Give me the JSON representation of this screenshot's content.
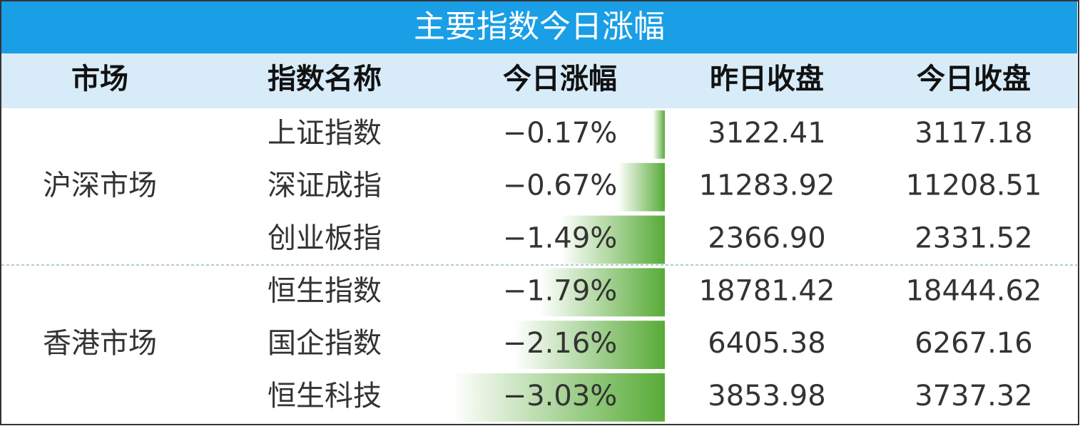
{
  "title": "主要指数今日涨幅",
  "table": {
    "header": [
      "市场",
      "指数名称",
      "今日涨幅",
      "昨日收盘",
      "今日收盘"
    ],
    "groups": [
      {
        "market": "沪深市场",
        "rows": [
          {
            "name": "上证指数",
            "change": {
              "value": -0.17,
              "label": "−0.17%"
            },
            "prev_close": "3122.41",
            "close": "3117.18"
          },
          {
            "name": "深证成指",
            "change": {
              "value": -0.67,
              "label": "−0.67%"
            },
            "prev_close": "11283.92",
            "close": "11208.51"
          },
          {
            "name": "创业板指",
            "change": {
              "value": -1.49,
              "label": "−1.49%"
            },
            "prev_close": "2366.90",
            "close": "2331.52"
          }
        ]
      },
      {
        "market": "香港市场",
        "rows": [
          {
            "name": "恒生指数",
            "change": {
              "value": -1.79,
              "label": "−1.79%"
            },
            "prev_close": "18781.42",
            "close": "18444.62"
          },
          {
            "name": "国企指数",
            "change": {
              "value": -2.16,
              "label": "−2.16%"
            },
            "prev_close": "6405.38",
            "close": "6267.16"
          },
          {
            "name": "恒生科技",
            "change": {
              "value": -3.03,
              "label": "−3.03%"
            },
            "prev_close": "3853.98",
            "close": "3737.32"
          }
        ]
      }
    ]
  }
}
